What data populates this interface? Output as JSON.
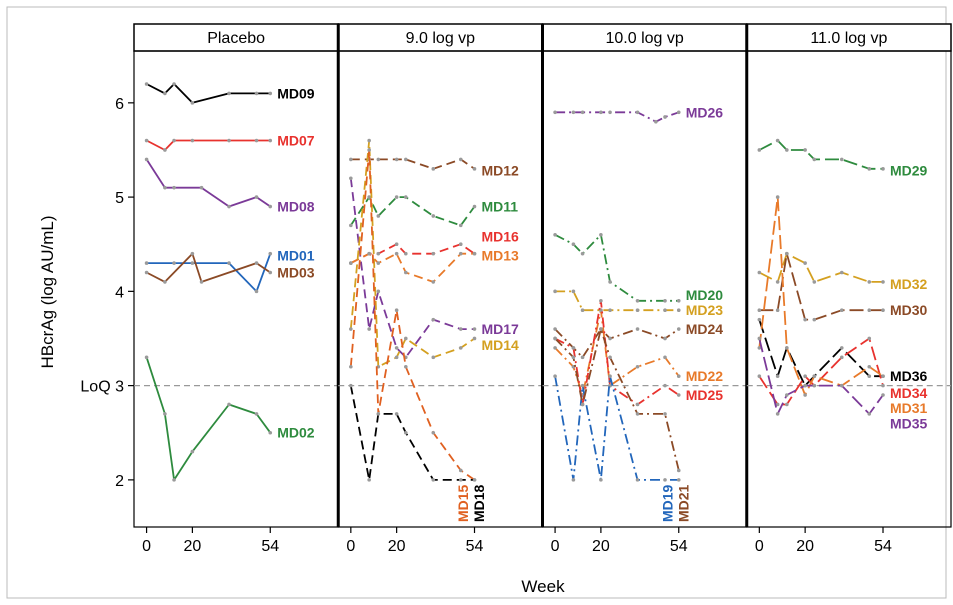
{
  "chart_data": {
    "type": "line",
    "ylabel": "HBcrAg (log AU/mL)",
    "xlabel": "Week",
    "ylim": [
      1.5,
      6.55
    ],
    "xlim": [
      -2,
      60
    ],
    "yticks": [
      {
        "v": 2,
        "label": "2"
      },
      {
        "v": 3,
        "label": "LoQ 3"
      },
      {
        "v": 4,
        "label": "4"
      },
      {
        "v": 5,
        "label": "5"
      },
      {
        "v": 6,
        "label": "6"
      }
    ],
    "xticks": [
      {
        "v": 0,
        "label": "0"
      },
      {
        "v": 20,
        "label": "20"
      },
      {
        "v": 54,
        "label": "54"
      }
    ],
    "loq": 3,
    "panels": [
      {
        "title": "Placebo",
        "series": [
          {
            "name": "MD09",
            "color": "#000000",
            "dash": "solid",
            "x": [
              0,
              8,
              12,
              20,
              36,
              48,
              54
            ],
            "y": [
              6.2,
              6.1,
              6.2,
              6.0,
              6.1,
              6.1,
              6.1
            ]
          },
          {
            "name": "MD07",
            "color": "#e8322e",
            "dash": "solid",
            "x": [
              0,
              8,
              12,
              20,
              36,
              48,
              54
            ],
            "y": [
              5.6,
              5.5,
              5.6,
              5.6,
              5.6,
              5.6,
              5.6
            ]
          },
          {
            "name": "MD08",
            "color": "#7b3a98",
            "dash": "solid",
            "x": [
              0,
              8,
              12,
              24,
              36,
              48,
              54
            ],
            "y": [
              5.4,
              5.1,
              5.1,
              5.1,
              4.9,
              5.0,
              4.9
            ]
          },
          {
            "name": "MD01",
            "color": "#2266bb",
            "dash": "solid",
            "x": [
              0,
              12,
              20,
              36,
              48,
              54
            ],
            "y": [
              4.3,
              4.3,
              4.3,
              4.3,
              4.0,
              4.4
            ]
          },
          {
            "name": "MD03",
            "color": "#8b4a26",
            "dash": "solid",
            "x": [
              0,
              8,
              20,
              24,
              48,
              54
            ],
            "y": [
              4.2,
              4.1,
              4.4,
              4.1,
              4.3,
              4.2
            ]
          },
          {
            "name": "MD02",
            "color": "#2e8b3e",
            "dash": "solid",
            "x": [
              0,
              8,
              12,
              20,
              36,
              48,
              54
            ],
            "y": [
              3.3,
              2.7,
              2.0,
              2.3,
              2.8,
              2.7,
              2.5
            ]
          }
        ],
        "labels": [
          {
            "name": "MD09",
            "color": "#000000",
            "y": 6.1
          },
          {
            "name": "MD07",
            "color": "#e8322e",
            "y": 5.6
          },
          {
            "name": "MD08",
            "color": "#7b3a98",
            "y": 4.9
          },
          {
            "name": "MD01",
            "color": "#2266bb",
            "y": 4.38
          },
          {
            "name": "MD03",
            "color": "#8b4a26",
            "y": 4.2
          },
          {
            "name": "MD02",
            "color": "#2e8b3e",
            "y": 2.5
          }
        ]
      },
      {
        "title": "9.0 log vp",
        "series": [
          {
            "name": "MD12",
            "color": "#8b4a26",
            "dash": "dash",
            "x": [
              0,
              8,
              12,
              20,
              24,
              36,
              48,
              54
            ],
            "y": [
              5.4,
              5.4,
              5.4,
              5.4,
              5.4,
              5.3,
              5.4,
              5.3
            ]
          },
          {
            "name": "MD11",
            "color": "#2e8b3e",
            "dash": "dash",
            "x": [
              0,
              8,
              12,
              20,
              24,
              36,
              48,
              54
            ],
            "y": [
              4.7,
              5.0,
              4.8,
              5.0,
              5.0,
              4.8,
              4.7,
              4.9
            ]
          },
          {
            "name": "MD16",
            "color": "#e8322e",
            "dash": "dash",
            "x": [
              0,
              8,
              12,
              20,
              24,
              36,
              48,
              54
            ],
            "y": [
              4.3,
              4.4,
              4.4,
              4.5,
              4.4,
              4.4,
              4.5,
              4.4
            ]
          },
          {
            "name": "MD13",
            "color": "#e87a2a",
            "dash": "dash",
            "x": [
              0,
              8,
              12,
              20,
              24,
              36,
              48,
              54
            ],
            "y": [
              4.3,
              4.4,
              4.3,
              4.4,
              4.2,
              4.1,
              4.4,
              4.4
            ]
          },
          {
            "name": "MD17",
            "color": "#7b3a98",
            "dash": "dash",
            "x": [
              0,
              8,
              12,
              20,
              24,
              36,
              48,
              54
            ],
            "y": [
              5.2,
              3.6,
              4.0,
              3.4,
              3.3,
              3.7,
              3.6,
              3.6
            ]
          },
          {
            "name": "MD14",
            "color": "#d4a020",
            "dash": "dash",
            "x": [
              0,
              8,
              12,
              20,
              24,
              36,
              48,
              54
            ],
            "y": [
              3.6,
              5.6,
              3.2,
              3.3,
              3.5,
              3.3,
              3.4,
              3.5
            ]
          },
          {
            "name": "MD15",
            "color": "#e06020",
            "dash": "dash",
            "x": [
              0,
              8,
              12,
              20,
              24,
              36,
              48,
              54
            ],
            "y": [
              3.2,
              5.5,
              2.7,
              3.8,
              3.2,
              2.5,
              2.1,
              2.0
            ]
          },
          {
            "name": "MD18",
            "color": "#000000",
            "dash": "dash",
            "x": [
              0,
              8,
              12,
              20,
              24,
              36,
              48,
              54
            ],
            "y": [
              3.0,
              2.0,
              2.7,
              2.7,
              2.5,
              2.0,
              2.0,
              2.0
            ]
          }
        ],
        "labels": [
          {
            "name": "MD12",
            "color": "#8b4a26",
            "y": 5.28
          },
          {
            "name": "MD11",
            "color": "#2e8b3e",
            "y": 4.9
          },
          {
            "name": "MD16",
            "color": "#e8322e",
            "y": 4.58
          },
          {
            "name": "MD13",
            "color": "#e87a2a",
            "y": 4.38
          },
          {
            "name": "MD17",
            "color": "#7b3a98",
            "y": 3.6
          },
          {
            "name": "MD14",
            "color": "#d4a020",
            "y": 3.43
          }
        ],
        "vlabels": [
          {
            "name": "MD15",
            "color": "#e06020",
            "x": 49
          },
          {
            "name": "MD18",
            "color": "#000000",
            "x": 56
          }
        ]
      },
      {
        "title": "10.0 log vp",
        "series": [
          {
            "name": "MD26",
            "color": "#7b3a98",
            "dash": "dashdot",
            "x": [
              0,
              8,
              12,
              20,
              24,
              36,
              44,
              48,
              54
            ],
            "y": [
              5.9,
              5.9,
              5.9,
              5.9,
              5.9,
              5.9,
              5.8,
              5.85,
              5.9
            ]
          },
          {
            "name": "MD20",
            "color": "#2e8b3e",
            "dash": "dashdot",
            "x": [
              0,
              8,
              12,
              20,
              24,
              36,
              48,
              54
            ],
            "y": [
              4.6,
              4.5,
              4.4,
              4.6,
              4.1,
              3.9,
              3.9,
              3.9
            ]
          },
          {
            "name": "MD23",
            "color": "#d4a020",
            "dash": "dashdot",
            "x": [
              0,
              8,
              12,
              20,
              24,
              36,
              48,
              54
            ],
            "y": [
              4.0,
              4.0,
              3.8,
              3.8,
              3.8,
              3.8,
              3.8,
              3.8
            ]
          },
          {
            "name": "MD24",
            "color": "#8b4a26",
            "dash": "dashdot",
            "x": [
              0,
              8,
              12,
              20,
              24,
              36,
              48,
              54
            ],
            "y": [
              3.6,
              3.4,
              3.3,
              3.6,
              3.5,
              3.6,
              3.5,
              3.6
            ]
          },
          {
            "name": "MD22",
            "color": "#e87a2a",
            "dash": "dashdot",
            "x": [
              0,
              8,
              12,
              20,
              24,
              36,
              48,
              54
            ],
            "y": [
              3.4,
              3.2,
              2.9,
              3.8,
              3.0,
              3.2,
              3.3,
              3.1
            ]
          },
          {
            "name": "MD25",
            "color": "#e8322e",
            "dash": "dashdot",
            "x": [
              0,
              8,
              12,
              20,
              24,
              36,
              48,
              54
            ],
            "y": [
              3.5,
              3.4,
              2.8,
              3.9,
              3.0,
              2.8,
              3.0,
              2.9
            ]
          },
          {
            "name": "MD19",
            "color": "#2266bb",
            "dash": "dashdot",
            "x": [
              0,
              8,
              12,
              20,
              24,
              36,
              48,
              54
            ],
            "y": [
              3.1,
              2.0,
              3.0,
              2.0,
              3.1,
              2.0,
              2.0,
              2.0
            ]
          },
          {
            "name": "MD21",
            "color": "#8b4a26",
            "dash": "dashdot",
            "x": [
              0,
              8,
              12,
              20,
              24,
              36,
              48,
              54
            ],
            "y": [
              3.5,
              3.3,
              2.8,
              3.6,
              3.3,
              2.7,
              2.7,
              2.1
            ]
          }
        ],
        "labels": [
          {
            "name": "MD26",
            "color": "#7b3a98",
            "y": 5.9
          },
          {
            "name": "MD20",
            "color": "#2e8b3e",
            "y": 3.96
          },
          {
            "name": "MD23",
            "color": "#d4a020",
            "y": 3.8
          },
          {
            "name": "MD24",
            "color": "#8b4a26",
            "y": 3.6
          },
          {
            "name": "MD22",
            "color": "#e87a2a",
            "y": 3.1
          },
          {
            "name": "MD25",
            "color": "#e8322e",
            "y": 2.9
          }
        ],
        "vlabels": [
          {
            "name": "MD19",
            "color": "#2266bb",
            "x": 49
          },
          {
            "name": "MD21",
            "color": "#8b4a26",
            "x": 56
          }
        ]
      },
      {
        "title": "11.0 log vp",
        "series": [
          {
            "name": "MD29",
            "color": "#2e8b3e",
            "dash": "longdash",
            "x": [
              0,
              8,
              12,
              20,
              24,
              36,
              48,
              54
            ],
            "y": [
              5.5,
              5.6,
              5.5,
              5.5,
              5.4,
              5.4,
              5.3,
              5.3
            ]
          },
          {
            "name": "MD32",
            "color": "#d4a020",
            "dash": "longdash",
            "x": [
              0,
              8,
              12,
              20,
              24,
              36,
              48,
              54
            ],
            "y": [
              4.2,
              4.1,
              4.4,
              4.3,
              4.1,
              4.2,
              4.1,
              4.1
            ]
          },
          {
            "name": "MD30",
            "color": "#8b4a26",
            "dash": "longdash",
            "x": [
              0,
              8,
              12,
              20,
              24,
              36,
              48,
              54
            ],
            "y": [
              3.8,
              3.8,
              4.4,
              3.7,
              3.7,
              3.8,
              3.8,
              3.8
            ]
          },
          {
            "name": "MD36",
            "color": "#000000",
            "dash": "longdash",
            "x": [
              0,
              8,
              12,
              20,
              24,
              36,
              48,
              54
            ],
            "y": [
              3.7,
              3.1,
              3.4,
              3.0,
              3.1,
              3.4,
              3.1,
              3.1
            ]
          },
          {
            "name": "MD34",
            "color": "#e8322e",
            "dash": "longdash",
            "x": [
              0,
              8,
              12,
              20,
              24,
              36,
              48,
              54
            ],
            "y": [
              3.1,
              2.8,
              2.8,
              3.1,
              3.0,
              3.3,
              3.5,
              3.0
            ]
          },
          {
            "name": "MD31",
            "color": "#e87a2a",
            "dash": "longdash",
            "x": [
              0,
              8,
              12,
              20,
              24,
              36,
              48,
              54
            ],
            "y": [
              3.4,
              5.0,
              3.4,
              2.9,
              3.1,
              3.0,
              3.2,
              3.1
            ]
          },
          {
            "name": "MD35",
            "color": "#7b3a98",
            "dash": "longdash",
            "x": [
              0,
              8,
              12,
              20,
              24,
              36,
              48,
              54
            ],
            "y": [
              3.5,
              2.7,
              2.9,
              3.0,
              3.0,
              3.0,
              2.7,
              2.9
            ]
          }
        ],
        "labels": [
          {
            "name": "MD29",
            "color": "#2e8b3e",
            "y": 5.28
          },
          {
            "name": "MD32",
            "color": "#d4a020",
            "y": 4.08
          },
          {
            "name": "MD30",
            "color": "#8b4a26",
            "y": 3.8
          },
          {
            "name": "MD36",
            "color": "#000000",
            "y": 3.1
          },
          {
            "name": "MD34",
            "color": "#e8322e",
            "y": 2.92
          },
          {
            "name": "MD31",
            "color": "#e87a2a",
            "y": 2.76
          },
          {
            "name": "MD35",
            "color": "#7b3a98",
            "y": 2.6
          }
        ]
      }
    ]
  }
}
